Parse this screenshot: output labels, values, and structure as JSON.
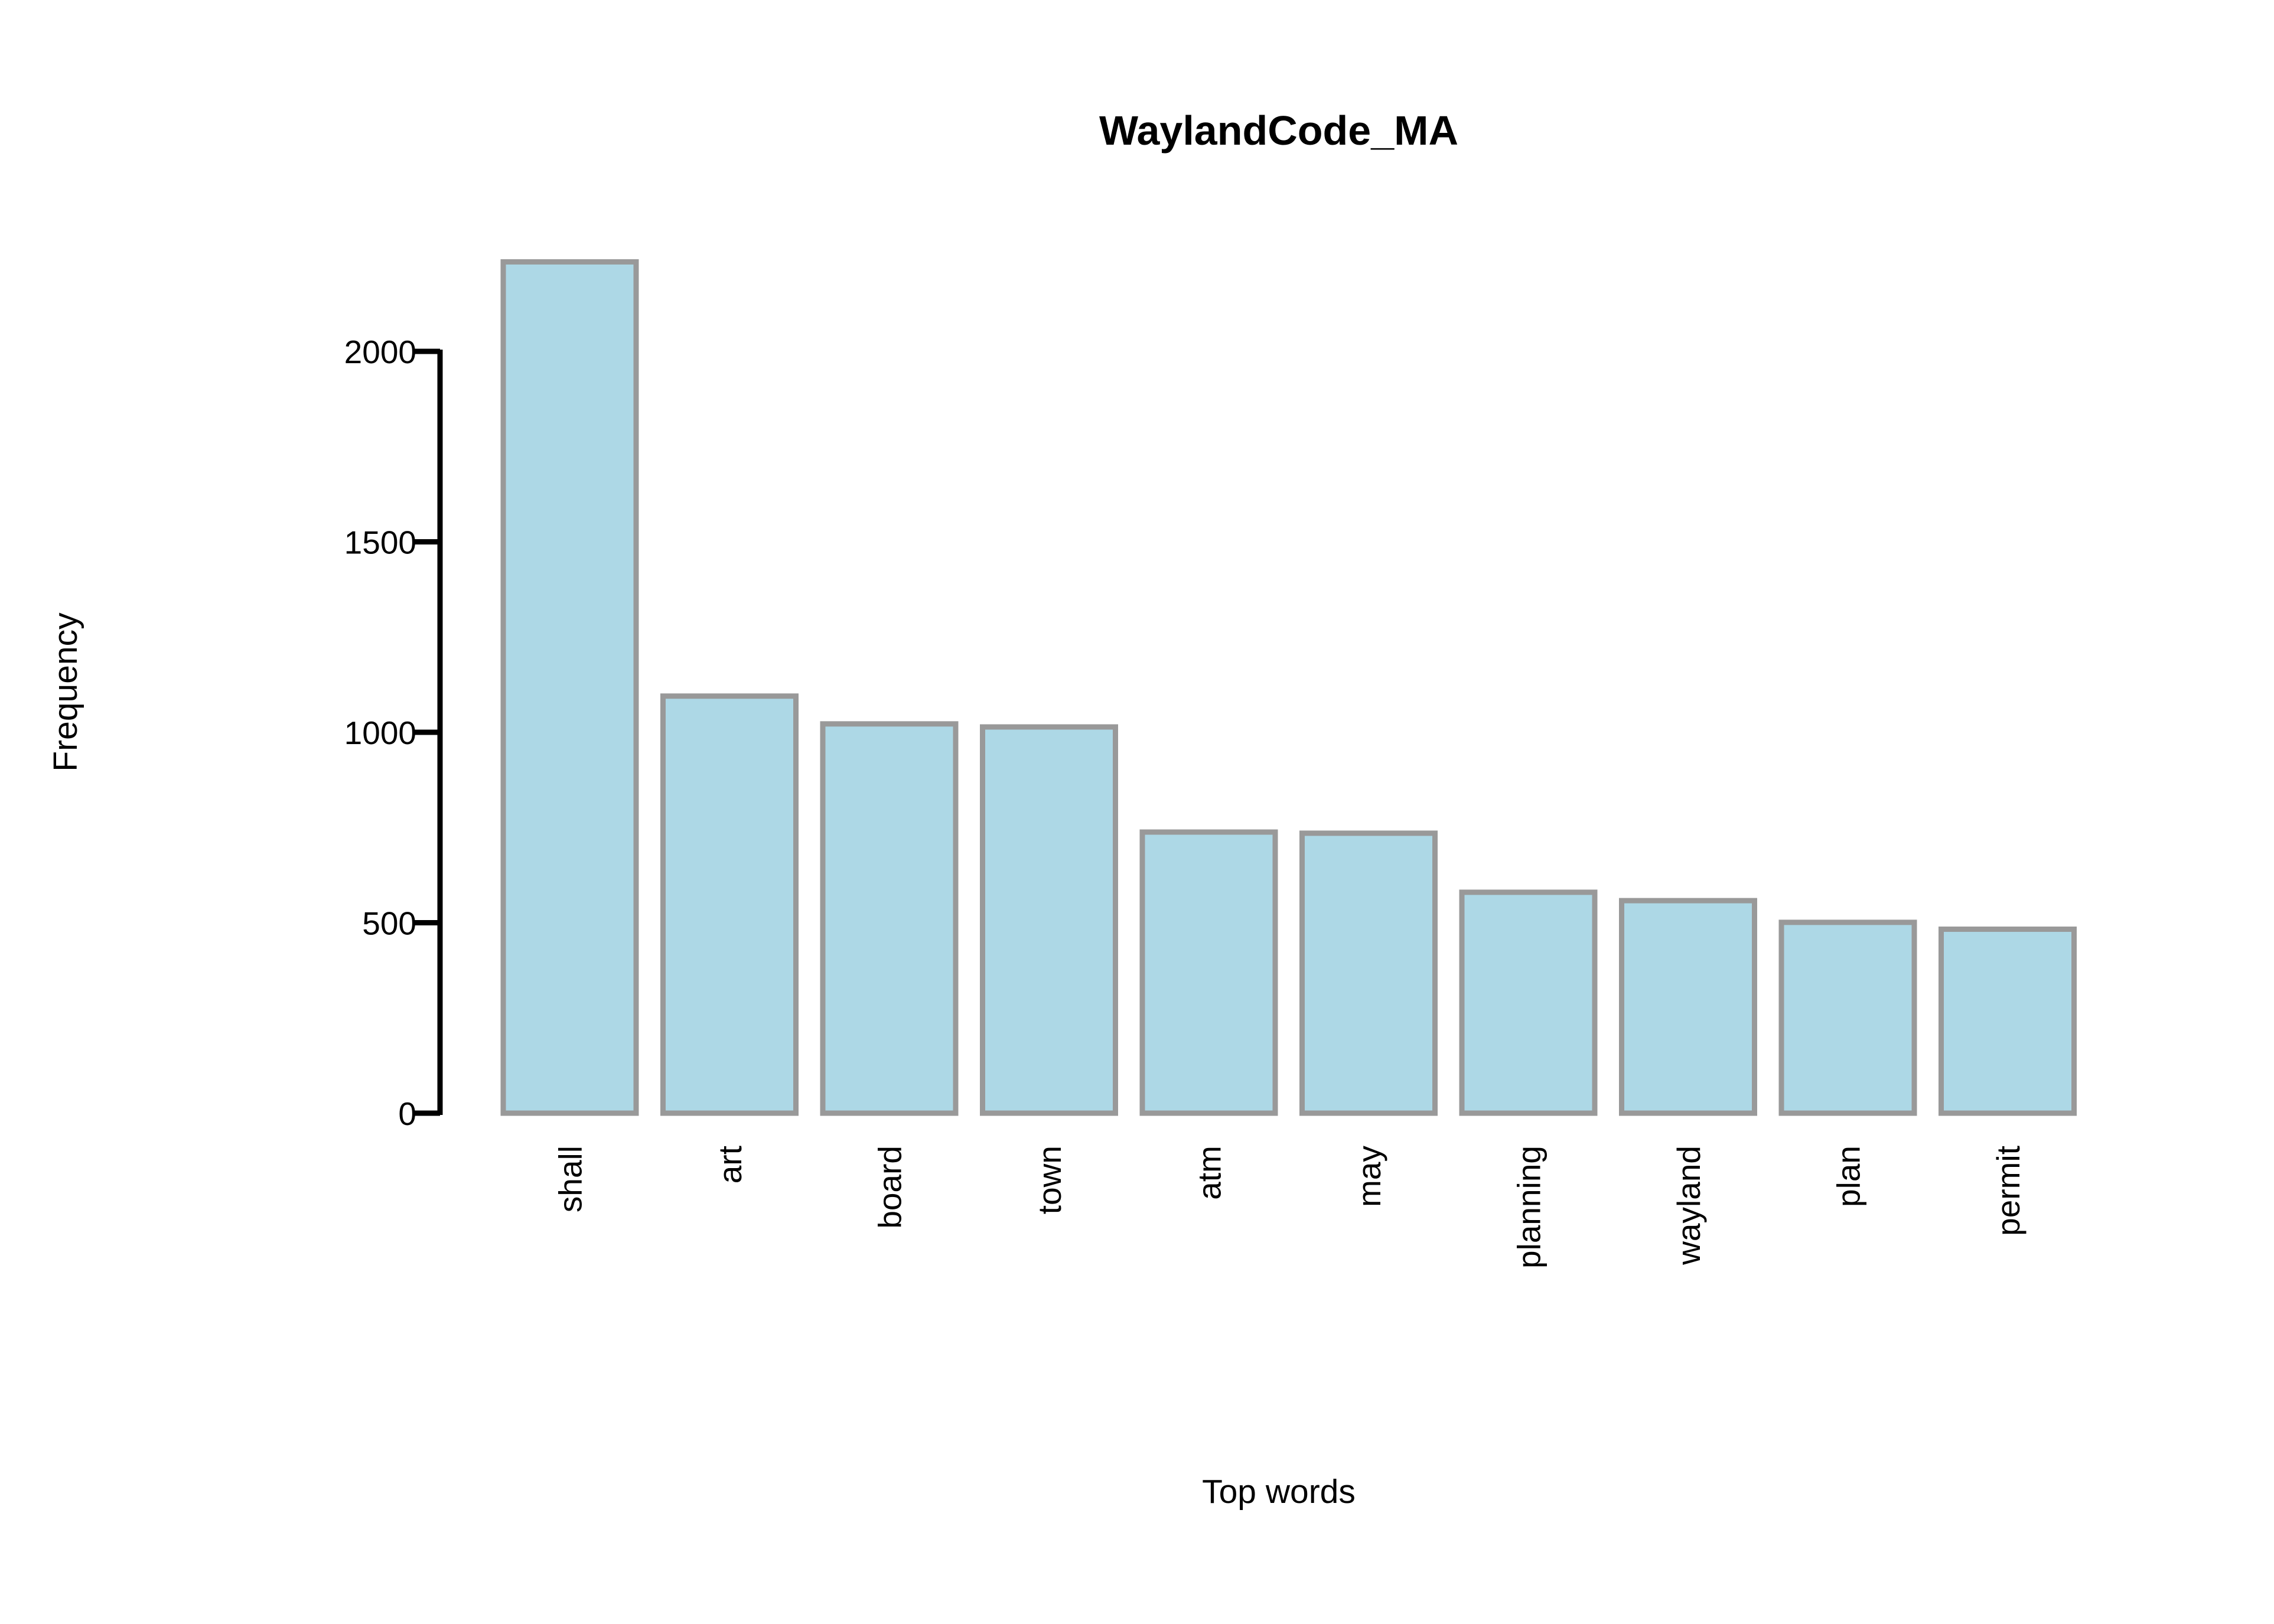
{
  "chart_data": {
    "type": "bar",
    "title": "WaylandCode_MA",
    "xlabel": "Top words",
    "ylabel": "Frequency",
    "categories": [
      "shall",
      "art",
      "board",
      "town",
      "atm",
      "may",
      "planning",
      "wayland",
      "plan",
      "permit"
    ],
    "values": [
      2235,
      1095,
      1022,
      1014,
      738,
      735,
      580,
      558,
      501,
      483
    ],
    "yticks": [
      0,
      500,
      1000,
      1500,
      2000
    ],
    "ylim": [
      0,
      2250
    ],
    "grid": false,
    "legend": "none",
    "colors": {
      "bar_fill": "#add8e6",
      "bar_stroke": "#999999",
      "axis": "#000000"
    }
  }
}
